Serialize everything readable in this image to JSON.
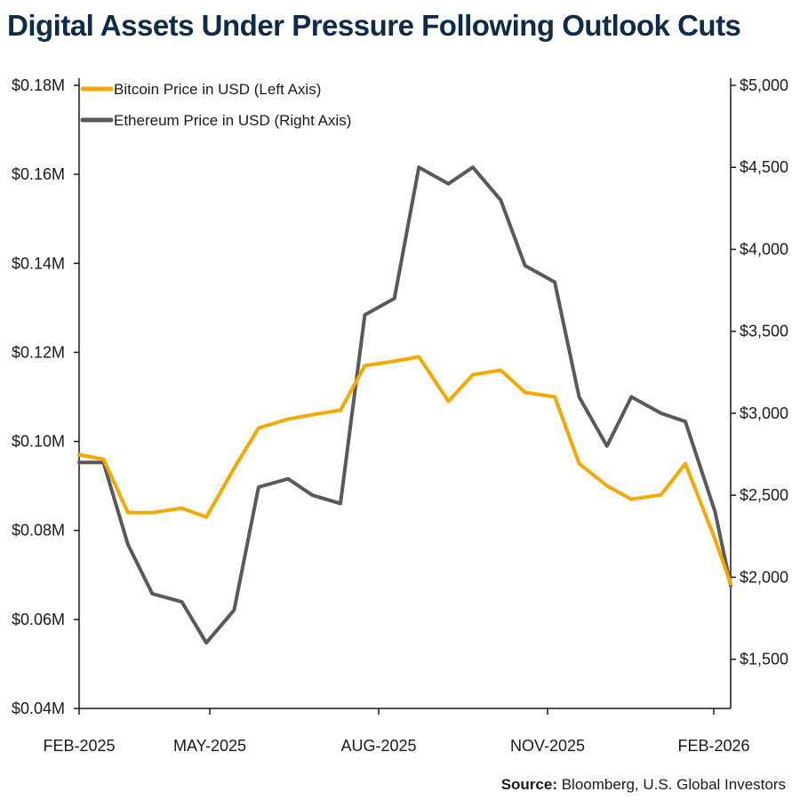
{
  "title": "Digital Assets Under Pressure Following Outlook Cuts",
  "source": {
    "label": "Source:",
    "text": "Bloomberg, U.S. Global Investors"
  },
  "colors": {
    "bitcoin": "#f5a800",
    "ethereum": "#595959",
    "title": "#0e2b4a",
    "axis": "#1a1a1a"
  },
  "chart_data": {
    "type": "line",
    "title": "Digital Assets Under Pressure Following Outlook Cuts",
    "grid": false,
    "legend_position": "top-left",
    "x_ticks": [
      "FEB-2025",
      "MAY-2025",
      "AUG-2025",
      "NOV-2025",
      "FEB-2026"
    ],
    "y_left": {
      "ylim": [
        0.04,
        0.18
      ],
      "ticks": [
        0.04,
        0.06,
        0.08,
        0.1,
        0.12,
        0.14,
        0.16,
        0.18
      ],
      "tick_labels": [
        "$0.04M",
        "$0.06M",
        "$0.08M",
        "$0.10M",
        "$0.12M",
        "$0.14M",
        "$0.16M",
        "$0.18M"
      ]
    },
    "y_right": {
      "ylim": [
        1200,
        5000
      ],
      "ticks": [
        1500,
        2000,
        2500,
        3000,
        3500,
        4000,
        4500,
        5000
      ],
      "tick_labels": [
        "$1,500",
        "$2,000",
        "$2,500",
        "$3,000",
        "$3,500",
        "$4,000",
        "$4,500",
        "$5,000"
      ]
    },
    "x": [
      "2025-02-01",
      "2025-02-15",
      "2025-03-01",
      "2025-03-15",
      "2025-04-01",
      "2025-04-15",
      "2025-05-01",
      "2025-05-15",
      "2025-06-01",
      "2025-06-15",
      "2025-07-01",
      "2025-07-15",
      "2025-08-01",
      "2025-08-15",
      "2025-09-01",
      "2025-09-15",
      "2025-10-01",
      "2025-10-15",
      "2025-11-01",
      "2025-11-15",
      "2025-12-01",
      "2025-12-15",
      "2026-01-01",
      "2026-01-15",
      "2026-02-01",
      "2026-02-10"
    ],
    "series": [
      {
        "name": "Bitcoin Price in USD (Left Axis)",
        "axis": "left",
        "values": [
          0.097,
          0.096,
          0.084,
          0.084,
          0.085,
          0.083,
          0.094,
          0.103,
          0.105,
          0.106,
          0.107,
          0.117,
          0.118,
          0.119,
          0.109,
          0.115,
          0.116,
          0.111,
          0.11,
          0.095,
          0.09,
          0.087,
          0.088,
          0.095,
          0.078,
          0.068
        ]
      },
      {
        "name": "Ethereum Price in USD (Right Axis)",
        "axis": "right",
        "values": [
          2700,
          2700,
          2200,
          1900,
          1850,
          1600,
          1800,
          2550,
          2600,
          2500,
          2450,
          3600,
          3700,
          4500,
          4400,
          4500,
          4300,
          3900,
          3800,
          3100,
          2800,
          3100,
          3000,
          2950,
          2400,
          1950
        ]
      }
    ]
  }
}
